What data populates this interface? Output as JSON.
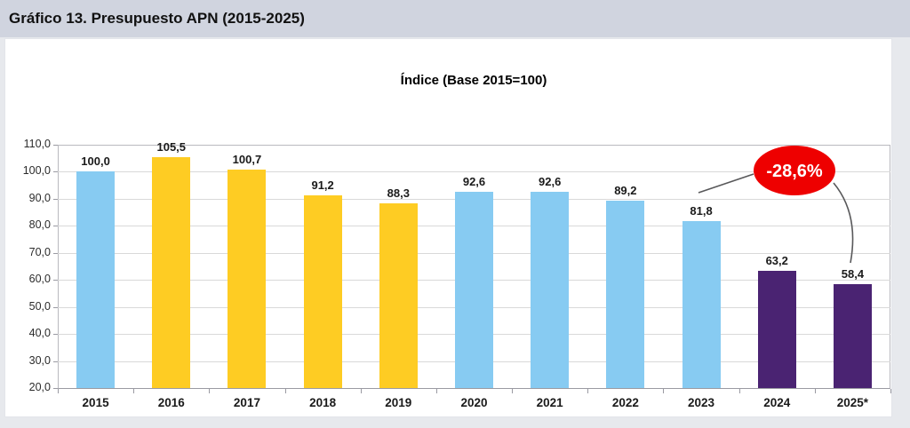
{
  "header": {
    "title": "Gráfico 13. Presupuesto APN (2015-2025)"
  },
  "chart_data": {
    "type": "bar",
    "title": "Índice (Base 2015=100)",
    "categories": [
      "2015",
      "2016",
      "2017",
      "2018",
      "2019",
      "2020",
      "2021",
      "2022",
      "2023",
      "2024",
      "2025*"
    ],
    "values": [
      100.0,
      105.5,
      100.7,
      91.2,
      88.3,
      92.6,
      92.6,
      89.2,
      81.8,
      63.2,
      58.4
    ],
    "value_labels": [
      "100,0",
      "105,5",
      "100,7",
      "91,2",
      "88,3",
      "92,6",
      "92,6",
      "89,2",
      "81,8",
      "63,2",
      "58,4"
    ],
    "bar_colors": [
      "#87cbf2",
      "#fecc23",
      "#fecc23",
      "#fecc23",
      "#fecc23",
      "#87cbf2",
      "#87cbf2",
      "#87cbf2",
      "#87cbf2",
      "#4a2372",
      "#4a2372"
    ],
    "xlabel": "",
    "ylabel": "",
    "ylim": [
      20,
      110
    ],
    "ytick_step": 10,
    "ytick_labels": [
      "20,0",
      "30,0",
      "40,0",
      "50,0",
      "60,0",
      "70,0",
      "80,0",
      "90,0",
      "100,0",
      "110,0"
    ],
    "grid": true,
    "legend": false,
    "annotation": {
      "text": "-28,6%",
      "fill_color": "#ee0000",
      "text_color": "#ffffff",
      "points_to": [
        "2023",
        "2025*"
      ]
    }
  },
  "colors": {
    "title_band": "#d0d4df",
    "panel": "#ffffff",
    "page_background": "#e7e9ed",
    "gridline": "#d9d9d9",
    "annotation_line": "#58585a"
  }
}
